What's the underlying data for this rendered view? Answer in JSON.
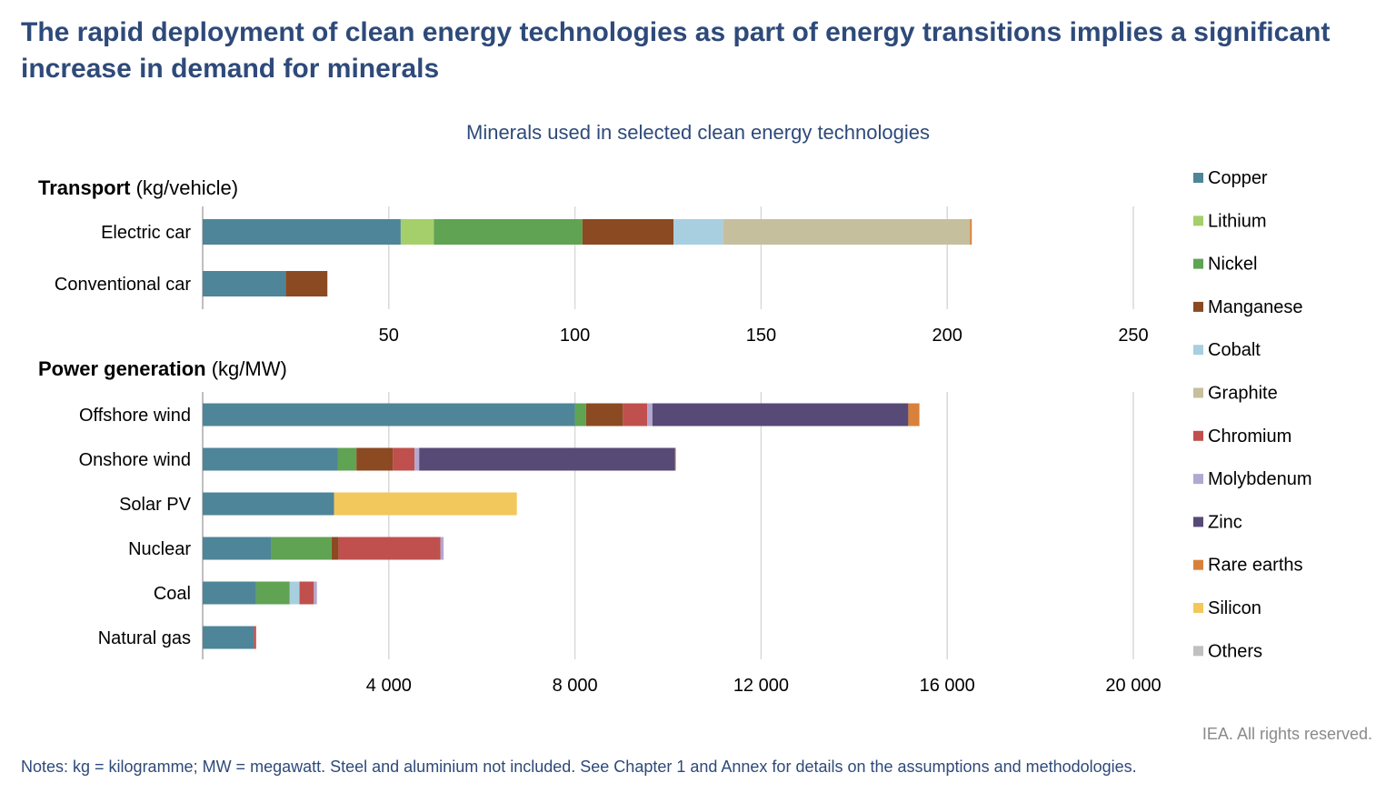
{
  "title": "The rapid deployment of clean energy technologies as part of energy transitions implies a significant increase in demand for minerals",
  "credit": "IEA. All rights reserved.",
  "notes": "Notes: kg = kilogramme; MW = megawatt. Steel and aluminium not included. See Chapter 1 and Annex for details on the assumptions and methodologies.",
  "chart_data": {
    "type": "bar",
    "orientation": "horizontal",
    "stacked": true,
    "title": "Minerals used in selected clean energy technologies",
    "legend_position": "right",
    "grid": true,
    "minerals": [
      "Copper",
      "Lithium",
      "Nickel",
      "Manganese",
      "Cobalt",
      "Graphite",
      "Chromium",
      "Molybdenum",
      "Zinc",
      "Rare earths",
      "Silicon",
      "Others"
    ],
    "colors": {
      "Copper": "#4e8599",
      "Lithium": "#a5cf6a",
      "Nickel": "#5fa353",
      "Manganese": "#8b4a22",
      "Cobalt": "#a8cfe0",
      "Graphite": "#c5bf9e",
      "Chromium": "#c0504d",
      "Molybdenum": "#b3a8cf",
      "Zinc": "#574a76",
      "Rare earths": "#d9813a",
      "Silicon": "#f2c75c",
      "Others": "#c0c0c0"
    },
    "panels": [
      {
        "heading": "Transport",
        "unit": "(kg/vehicle)",
        "xlim": [
          0,
          250
        ],
        "ticks": [
          "50",
          "100",
          "150",
          "200",
          "250"
        ],
        "tick_values": [
          50,
          100,
          150,
          200,
          250
        ],
        "categories": [
          {
            "name": "Electric car",
            "values": {
              "Copper": 53.2,
              "Lithium": 8.9,
              "Nickel": 39.9,
              "Manganese": 24.5,
              "Cobalt": 13.3,
              "Graphite": 66.3,
              "Rare earths": 0.5
            }
          },
          {
            "name": "Conventional car",
            "values": {
              "Copper": 22.3,
              "Manganese": 11.2
            }
          }
        ]
      },
      {
        "heading": "Power generation",
        "unit": "(kg/MW)",
        "xlim": [
          0,
          20000
        ],
        "ticks": [
          "4 000",
          "8 000",
          "12 000",
          "16 000",
          "20 000"
        ],
        "tick_values": [
          4000,
          8000,
          12000,
          16000,
          20000
        ],
        "categories": [
          {
            "name": "Offshore wind",
            "values": {
              "Copper": 8000,
              "Nickel": 240,
              "Manganese": 790,
              "Chromium": 525,
              "Molybdenum": 109,
              "Zinc": 5500,
              "Rare earths": 239
            }
          },
          {
            "name": "Onshore wind",
            "values": {
              "Copper": 2900,
              "Nickel": 404,
              "Manganese": 780,
              "Chromium": 470,
              "Molybdenum": 99,
              "Zinc": 5500,
              "Rare earths": 14
            }
          },
          {
            "name": "Solar PV",
            "values": {
              "Copper": 2822,
              "Silicon": 3930
            }
          },
          {
            "name": "Nuclear",
            "values": {
              "Copper": 1473,
              "Nickel": 1297,
              "Manganese": 148,
              "Chromium": 2190,
              "Molybdenum": 70
            }
          },
          {
            "name": "Coal",
            "values": {
              "Copper": 1150,
              "Nickel": 721,
              "Cobalt": 210,
              "Chromium": 308,
              "Molybdenum": 66
            }
          },
          {
            "name": "Natural gas",
            "values": {
              "Copper": 1100,
              "Chromium": 48
            }
          }
        ]
      }
    ]
  }
}
